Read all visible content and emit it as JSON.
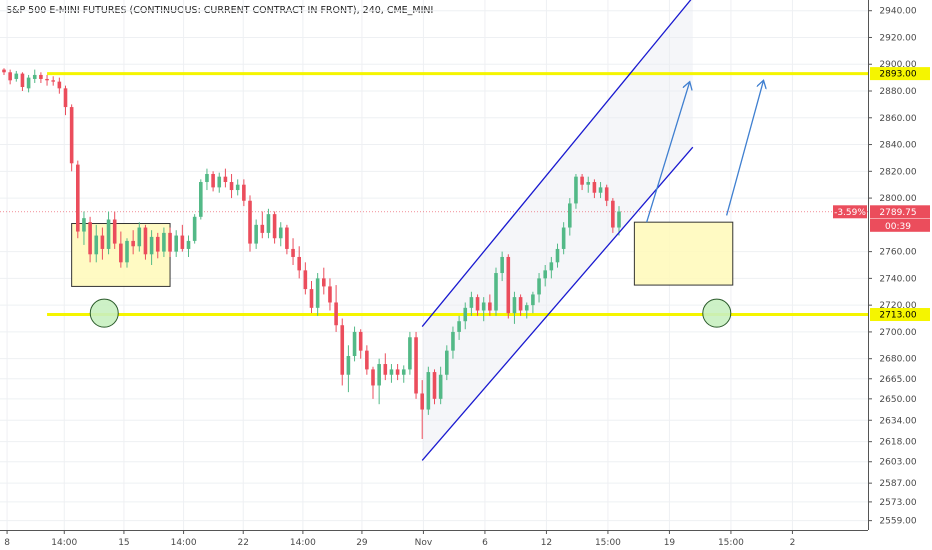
{
  "colors": {
    "up": "#53b987",
    "down": "#eb4d5c",
    "level": "#f5f500",
    "channel": "#1a1ad0",
    "arrow": "#3f7fd0",
    "box_fill": "#fff9b8",
    "box_stroke": "#333333",
    "circle_fill": "#c8f0c0",
    "circle_stroke": "#2a5a2a",
    "price_label_bg": "#eb4d5c",
    "grid": "#eef0f3"
  },
  "chart_data": {
    "type": "candlestick",
    "title": "S&P 500 E-MINI FUTURES (CONTINUOUS: CURRENT CONTRACT IN FRONT), 240, CME_MINI",
    "ylim": [
      2552,
      2948
    ],
    "y_ticks": [
      {
        "value": 2940,
        "label": "2940.00"
      },
      {
        "value": 2920,
        "label": "2920.00"
      },
      {
        "value": 2900,
        "label": "2900.00"
      },
      {
        "value": 2880,
        "label": "2880.00"
      },
      {
        "value": 2860,
        "label": "2860.00"
      },
      {
        "value": 2840,
        "label": "2840.00"
      },
      {
        "value": 2820,
        "label": "2820.00"
      },
      {
        "value": 2800,
        "label": "2800.00"
      },
      {
        "value": 2760,
        "label": "2760.00"
      },
      {
        "value": 2740,
        "label": "2740.00"
      },
      {
        "value": 2720,
        "label": "2720.00"
      },
      {
        "value": 2700,
        "label": "2700.00"
      },
      {
        "value": 2680,
        "label": "2680.00"
      },
      {
        "value": 2665,
        "label": "2665.00"
      },
      {
        "value": 2650,
        "label": "2650.00"
      },
      {
        "value": 2634,
        "label": "2634.00"
      },
      {
        "value": 2618,
        "label": "2618.00"
      },
      {
        "value": 2603,
        "label": "2603.00"
      },
      {
        "value": 2587,
        "label": "2587.00"
      },
      {
        "value": 2573,
        "label": "2573.00"
      },
      {
        "value": 2559,
        "label": "2559.00"
      }
    ],
    "x_ticks": [
      {
        "pos": 0.5,
        "label": "8"
      },
      {
        "pos": 9.8,
        "label": "14:00"
      },
      {
        "pos": 19.5,
        "label": "15"
      },
      {
        "pos": 29.2,
        "label": "14:00"
      },
      {
        "pos": 38.9,
        "label": "22"
      },
      {
        "pos": 48.6,
        "label": "14:00"
      },
      {
        "pos": 58.2,
        "label": "29"
      },
      {
        "pos": 68.2,
        "label": "Nov"
      },
      {
        "pos": 78.2,
        "label": "6"
      },
      {
        "pos": 88.2,
        "label": "12"
      },
      {
        "pos": 98.2,
        "label": "15:00"
      },
      {
        "pos": 108.2,
        "label": "19"
      },
      {
        "pos": 118.2,
        "label": "15:00"
      },
      {
        "pos": 128.2,
        "label": "2"
      }
    ],
    "candles": [
      [
        2896,
        2897,
        2892,
        2894
      ],
      [
        2894,
        2896,
        2885,
        2888
      ],
      [
        2889,
        2895,
        2887,
        2893
      ],
      [
        2893,
        2894,
        2880,
        2883
      ],
      [
        2882,
        2892,
        2879,
        2890
      ],
      [
        2889,
        2896,
        2886,
        2892
      ],
      [
        2892,
        2894,
        2886,
        2889
      ],
      [
        2889,
        2892,
        2884,
        2888
      ],
      [
        2888,
        2891,
        2884,
        2887
      ],
      [
        2887,
        2890,
        2878,
        2882
      ],
      [
        2882,
        2884,
        2862,
        2868
      ],
      [
        2868,
        2870,
        2820,
        2826
      ],
      [
        2825,
        2828,
        2770,
        2775
      ],
      [
        2775,
        2790,
        2765,
        2785
      ],
      [
        2782,
        2786,
        2752,
        2758
      ],
      [
        2758,
        2780,
        2752,
        2772
      ],
      [
        2772,
        2778,
        2754,
        2762
      ],
      [
        2762,
        2790,
        2758,
        2784
      ],
      [
        2784,
        2790,
        2762,
        2766
      ],
      [
        2766,
        2775,
        2748,
        2752
      ],
      [
        2752,
        2770,
        2748,
        2768
      ],
      [
        2768,
        2776,
        2758,
        2764
      ],
      [
        2764,
        2782,
        2760,
        2778
      ],
      [
        2778,
        2780,
        2754,
        2758
      ],
      [
        2758,
        2776,
        2750,
        2771
      ],
      [
        2771,
        2774,
        2755,
        2760
      ],
      [
        2760,
        2778,
        2756,
        2774
      ],
      [
        2774,
        2778,
        2756,
        2760
      ],
      [
        2760,
        2776,
        2756,
        2772
      ],
      [
        2772,
        2780,
        2760,
        2762
      ],
      [
        2762,
        2772,
        2756,
        2768
      ],
      [
        2768,
        2788,
        2766,
        2786
      ],
      [
        2786,
        2814,
        2784,
        2812
      ],
      [
        2812,
        2822,
        2806,
        2818
      ],
      [
        2818,
        2820,
        2805,
        2808
      ],
      [
        2808,
        2819,
        2804,
        2816
      ],
      [
        2816,
        2822,
        2808,
        2812
      ],
      [
        2812,
        2818,
        2800,
        2806
      ],
      [
        2806,
        2814,
        2802,
        2810
      ],
      [
        2810,
        2814,
        2794,
        2798
      ],
      [
        2798,
        2802,
        2760,
        2766
      ],
      [
        2766,
        2784,
        2762,
        2780
      ],
      [
        2780,
        2790,
        2770,
        2774
      ],
      [
        2774,
        2792,
        2770,
        2788
      ],
      [
        2788,
        2790,
        2766,
        2770
      ],
      [
        2770,
        2782,
        2764,
        2778
      ],
      [
        2778,
        2780,
        2758,
        2762
      ],
      [
        2762,
        2770,
        2750,
        2756
      ],
      [
        2756,
        2764,
        2740,
        2746
      ],
      [
        2746,
        2752,
        2728,
        2732
      ],
      [
        2732,
        2738,
        2714,
        2718
      ],
      [
        2718,
        2744,
        2712,
        2740
      ],
      [
        2740,
        2748,
        2728,
        2734
      ],
      [
        2734,
        2740,
        2716,
        2722
      ],
      [
        2722,
        2735,
        2700,
        2705
      ],
      [
        2705,
        2710,
        2660,
        2668
      ],
      [
        2668,
        2690,
        2655,
        2682
      ],
      [
        2682,
        2704,
        2678,
        2700
      ],
      [
        2700,
        2702,
        2680,
        2686
      ],
      [
        2686,
        2690,
        2668,
        2672
      ],
      [
        2672,
        2674,
        2650,
        2660
      ],
      [
        2660,
        2680,
        2646,
        2676
      ],
      [
        2676,
        2684,
        2664,
        2668
      ],
      [
        2668,
        2676,
        2662,
        2672
      ],
      [
        2672,
        2676,
        2664,
        2668
      ],
      [
        2668,
        2675,
        2662,
        2672
      ],
      [
        2672,
        2700,
        2668,
        2696
      ],
      [
        2696,
        2700,
        2650,
        2654
      ],
      [
        2654,
        2664,
        2620,
        2642
      ],
      [
        2642,
        2674,
        2638,
        2670
      ],
      [
        2670,
        2672,
        2646,
        2650
      ],
      [
        2650,
        2674,
        2646,
        2668
      ],
      [
        2668,
        2690,
        2664,
        2686
      ],
      [
        2686,
        2704,
        2680,
        2700
      ],
      [
        2700,
        2712,
        2694,
        2708
      ],
      [
        2708,
        2722,
        2702,
        2718
      ],
      [
        2718,
        2730,
        2712,
        2726
      ],
      [
        2726,
        2728,
        2712,
        2716
      ],
      [
        2716,
        2726,
        2708,
        2722
      ],
      [
        2722,
        2728,
        2712,
        2716
      ],
      [
        2716,
        2748,
        2712,
        2744
      ],
      [
        2744,
        2760,
        2738,
        2756
      ],
      [
        2756,
        2758,
        2710,
        2714
      ],
      [
        2714,
        2730,
        2706,
        2726
      ],
      [
        2726,
        2728,
        2712,
        2716
      ],
      [
        2716,
        2722,
        2710,
        2720
      ],
      [
        2720,
        2730,
        2714,
        2728
      ],
      [
        2728,
        2744,
        2722,
        2740
      ],
      [
        2740,
        2750,
        2734,
        2746
      ],
      [
        2746,
        2756,
        2740,
        2752
      ],
      [
        2752,
        2766,
        2748,
        2762
      ],
      [
        2762,
        2782,
        2758,
        2778
      ],
      [
        2778,
        2800,
        2772,
        2796
      ],
      [
        2796,
        2818,
        2792,
        2816
      ],
      [
        2816,
        2818,
        2806,
        2810
      ],
      [
        2810,
        2816,
        2804,
        2812
      ],
      [
        2812,
        2814,
        2800,
        2804
      ],
      [
        2804,
        2812,
        2800,
        2808
      ],
      [
        2808,
        2810,
        2794,
        2798
      ],
      [
        2798,
        2800,
        2774,
        2778
      ],
      [
        2778,
        2794,
        2772,
        2790
      ]
    ],
    "levels": [
      {
        "value": 2893,
        "label": "2893.00"
      },
      {
        "value": 2713,
        "label": "2713.00"
      }
    ],
    "current_price": {
      "value": 2789.75,
      "change": "-3.59%",
      "price": "2789.75",
      "countdown": "00:39"
    },
    "channel": {
      "upper": {
        "from": [
          68,
          2704
        ],
        "to": [
          112,
          2950
        ]
      },
      "lower": {
        "from": [
          68,
          2604
        ],
        "to": [
          112,
          2838
        ]
      }
    },
    "zones": [
      {
        "from": [
          11,
          2781
        ],
        "to": [
          27,
          2734
        ]
      },
      {
        "from": [
          102.5,
          2782
        ],
        "to": [
          118.5,
          2735
        ]
      }
    ],
    "circles": [
      {
        "at": [
          16.3,
          2714
        ]
      },
      {
        "at": [
          115.9,
          2714
        ]
      }
    ],
    "arrows": [
      {
        "from": [
          104.5,
          2782
        ],
        "to": [
          111.5,
          2887
        ]
      },
      {
        "from": [
          117.5,
          2787
        ],
        "to": [
          123.5,
          2888
        ]
      }
    ]
  }
}
